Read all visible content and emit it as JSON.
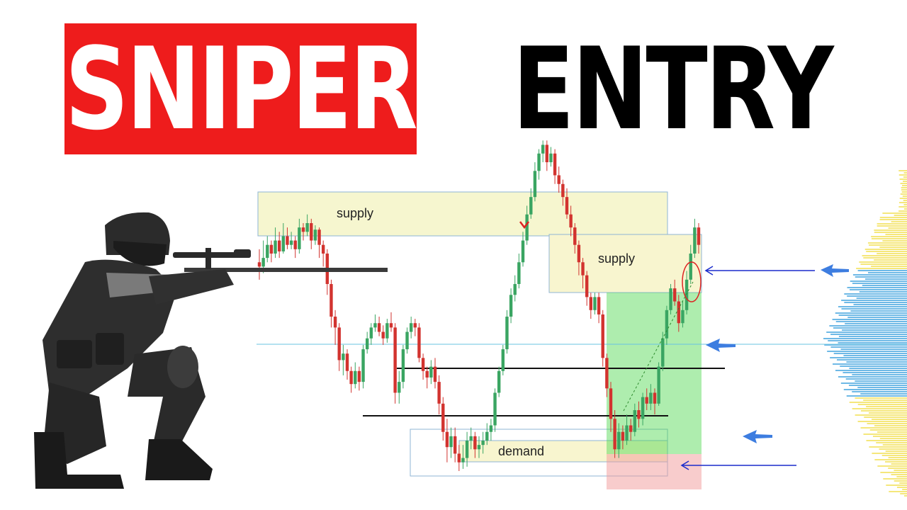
{
  "title": {
    "left": "SNIPER",
    "right": "ENTRY"
  },
  "chart_data": {
    "type": "candlestick",
    "zones": [
      {
        "label": "supply",
        "kind": "supply"
      },
      {
        "label": "supply",
        "kind": "supply"
      },
      {
        "label": "demand",
        "kind": "demand"
      }
    ],
    "candles": [
      [
        20,
        18,
        26,
        12
      ],
      [
        18,
        22,
        30,
        15
      ],
      [
        22,
        28,
        32,
        20
      ],
      [
        28,
        24,
        30,
        20
      ],
      [
        24,
        30,
        36,
        22
      ],
      [
        30,
        25,
        34,
        22
      ],
      [
        25,
        32,
        38,
        24
      ],
      [
        32,
        28,
        36,
        26
      ],
      [
        28,
        30,
        34,
        26
      ],
      [
        30,
        26,
        32,
        22
      ],
      [
        26,
        36,
        40,
        24
      ],
      [
        36,
        34,
        38,
        30
      ],
      [
        34,
        38,
        42,
        32
      ],
      [
        38,
        30,
        40,
        26
      ],
      [
        30,
        35,
        37,
        28
      ],
      [
        35,
        28,
        36,
        22
      ],
      [
        28,
        24,
        30,
        18
      ],
      [
        24,
        10,
        26,
        5
      ],
      [
        10,
        -5,
        12,
        -10
      ],
      [
        -5,
        -10,
        -2,
        -18
      ],
      [
        -10,
        -25,
        -8,
        -30
      ],
      [
        -25,
        -22,
        -18,
        -32
      ],
      [
        -22,
        -30,
        -20,
        -34
      ],
      [
        -30,
        -36,
        -28,
        -40
      ],
      [
        -36,
        -30,
        -26,
        -38
      ],
      [
        -30,
        -35,
        -28,
        -39
      ],
      [
        -35,
        -20,
        -18,
        -38
      ],
      [
        -20,
        -15,
        -12,
        -22
      ],
      [
        -15,
        -10,
        -8,
        -18
      ],
      [
        -10,
        -8,
        -4,
        -12
      ],
      [
        -8,
        -12,
        -5,
        -14
      ],
      [
        -12,
        -15,
        -9,
        -18
      ],
      [
        -15,
        -8,
        -6,
        -17
      ],
      [
        -8,
        -10,
        -3,
        -12
      ],
      [
        -10,
        -40,
        -8,
        -45
      ],
      [
        -40,
        -35,
        -30,
        -45
      ],
      [
        -35,
        -20,
        -18,
        -38
      ],
      [
        -20,
        -12,
        -10,
        -22
      ],
      [
        -12,
        -8,
        -5,
        -15
      ],
      [
        -8,
        -10,
        -6,
        -14
      ],
      [
        -10,
        -24,
        -8,
        -26
      ],
      [
        -24,
        -30,
        -22,
        -34
      ],
      [
        -30,
        -33,
        -28,
        -38
      ],
      [
        -33,
        -28,
        -25,
        -36
      ],
      [
        -28,
        -35,
        -24,
        -38
      ],
      [
        -35,
        -45,
        -32,
        -50
      ],
      [
        -45,
        -58,
        -42,
        -62
      ],
      [
        -58,
        -65,
        -52,
        -72
      ],
      [
        -65,
        -60,
        -56,
        -70
      ],
      [
        -60,
        -68,
        -56,
        -72
      ],
      [
        -68,
        -72,
        -64,
        -76
      ],
      [
        -72,
        -70,
        -64,
        -75
      ],
      [
        -70,
        -62,
        -58,
        -74
      ],
      [
        -62,
        -60,
        -56,
        -66
      ],
      [
        -60,
        -66,
        -58,
        -70
      ],
      [
        -66,
        -64,
        -60,
        -70
      ],
      [
        -64,
        -62,
        -58,
        -68
      ],
      [
        -62,
        -58,
        -54,
        -64
      ],
      [
        -58,
        -55,
        -52,
        -62
      ],
      [
        -55,
        -40,
        -38,
        -58
      ],
      [
        -40,
        -30,
        -28,
        -42
      ],
      [
        -30,
        -20,
        -18,
        -32
      ],
      [
        -20,
        -5,
        -2,
        -22
      ],
      [
        -5,
        5,
        8,
        -8
      ],
      [
        5,
        10,
        14,
        2
      ],
      [
        10,
        20,
        24,
        8
      ],
      [
        20,
        30,
        34,
        18
      ],
      [
        30,
        42,
        46,
        28
      ],
      [
        42,
        50,
        54,
        40
      ],
      [
        50,
        62,
        66,
        48
      ],
      [
        62,
        70,
        72,
        58
      ],
      [
        70,
        74,
        76,
        66
      ],
      [
        74,
        66,
        76,
        62
      ],
      [
        66,
        70,
        73,
        64
      ],
      [
        70,
        60,
        72,
        56
      ],
      [
        60,
        56,
        64,
        52
      ],
      [
        56,
        50,
        58,
        46
      ],
      [
        50,
        42,
        54,
        40
      ],
      [
        42,
        36,
        46,
        32
      ],
      [
        36,
        28,
        38,
        24
      ],
      [
        28,
        20,
        30,
        14
      ],
      [
        20,
        14,
        22,
        8
      ],
      [
        14,
        4,
        16,
        0
      ],
      [
        4,
        -2,
        6,
        -6
      ],
      [
        -2,
        4,
        6,
        -4
      ],
      [
        4,
        -4,
        6,
        -8
      ],
      [
        -4,
        -24,
        -2,
        -28
      ],
      [
        -24,
        -38,
        -22,
        -42
      ],
      [
        -38,
        -52,
        -35,
        -58
      ],
      [
        -52,
        -66,
        -48,
        -70
      ],
      [
        -66,
        -58,
        -54,
        -70
      ],
      [
        -58,
        -62,
        -55,
        -66
      ],
      [
        -62,
        -55,
        -50,
        -64
      ],
      [
        -55,
        -58,
        -52,
        -62
      ],
      [
        -58,
        -48,
        -45,
        -60
      ],
      [
        -48,
        -52,
        -44,
        -56
      ],
      [
        -52,
        -42,
        -40,
        -55
      ],
      [
        -42,
        -45,
        -38,
        -48
      ],
      [
        -45,
        -40,
        -36,
        -48
      ],
      [
        -40,
        -45,
        -38,
        -50
      ],
      [
        -45,
        -28,
        -26,
        -46
      ],
      [
        -28,
        -15,
        -12,
        -30
      ],
      [
        -15,
        -2,
        0,
        -18
      ],
      [
        -2,
        8,
        10,
        -4
      ],
      [
        8,
        2,
        12,
        0
      ],
      [
        2,
        -8,
        5,
        -12
      ],
      [
        -8,
        -2,
        2,
        -10
      ],
      [
        -2,
        12,
        16,
        -4
      ],
      [
        12,
        24,
        28,
        10
      ],
      [
        24,
        36,
        40,
        22
      ],
      [
        36,
        28,
        38,
        24
      ]
    ]
  }
}
